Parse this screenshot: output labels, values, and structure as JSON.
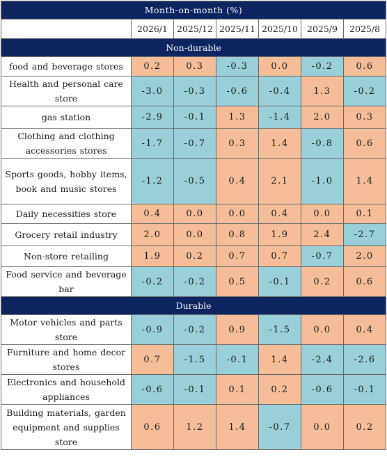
{
  "title": "Month-on-month (%)",
  "columns": [
    "2026/1",
    "2025/12",
    "2025/11",
    "2025/10",
    "2025/9",
    "2025/8"
  ],
  "colors": {
    "header_bg": "#0d2460",
    "positive": "#f6be98",
    "negative": "#99cfd9"
  },
  "sections": [
    {
      "name": "Non-durable",
      "rows": [
        {
          "label": "food and beverage stores",
          "values": [
            "0.2",
            "0.3",
            "-0.3",
            "0.0",
            "-0.2",
            "0.6"
          ]
        },
        {
          "label": "Health and personal care store",
          "values": [
            "-3.0",
            "-0.3",
            "-0.6",
            "-0.4",
            "1.3",
            "-0.2"
          ]
        },
        {
          "label": "gas station",
          "values": [
            "-2.9",
            "-0.1",
            "1.3",
            "-1.4",
            "2.0",
            "0.3"
          ]
        },
        {
          "label": "Clothing and clothing accessories stores",
          "values": [
            "-1.7",
            "-0.7",
            "0.3",
            "1.4",
            "-0.8",
            "0.6"
          ]
        },
        {
          "label": "Sports goods, hobby items, book and music stores",
          "values": [
            "-1.2",
            "-0.5",
            "0.4",
            "2.1",
            "-1.0",
            "1.4"
          ]
        },
        {
          "label": "Daily necessities store",
          "values": [
            "0.4",
            "0.0",
            "0.0",
            "0.4",
            "0.0",
            "0.1"
          ]
        },
        {
          "label": "Grocery retail industry",
          "values": [
            "2.0",
            "0.0",
            "0.8",
            "1.9",
            "2.4",
            "-2.7"
          ]
        },
        {
          "label": "Non-store retailing",
          "values": [
            "1.9",
            "0.2",
            "0.7",
            "0.7",
            "-0.7",
            "2.0"
          ]
        },
        {
          "label": "Food service and beverage bar",
          "values": [
            "-0.2",
            "-0.2",
            "0.5",
            "-0.1",
            "0.2",
            "0.6"
          ]
        }
      ]
    },
    {
      "name": "Durable",
      "rows": [
        {
          "label": "Motor vehicles and parts store",
          "values": [
            "-0.9",
            "-0.2",
            "0.9",
            "-1.5",
            "0.0",
            "0.4"
          ]
        },
        {
          "label": "Furniture and home decor stores",
          "values": [
            "0.7",
            "-1.5",
            "-0.1",
            "1.4",
            "-2.4",
            "-2.6"
          ]
        },
        {
          "label": "Electronics and household appliances",
          "values": [
            "-0.6",
            "-0.1",
            "0.1",
            "0.2",
            "-0.6",
            "-0.1"
          ]
        },
        {
          "label": "Building materials, garden equipment and supplies store",
          "values": [
            "0.6",
            "1.2",
            "1.4",
            "-0.7",
            "0.0",
            "0.2"
          ]
        }
      ]
    }
  ]
}
